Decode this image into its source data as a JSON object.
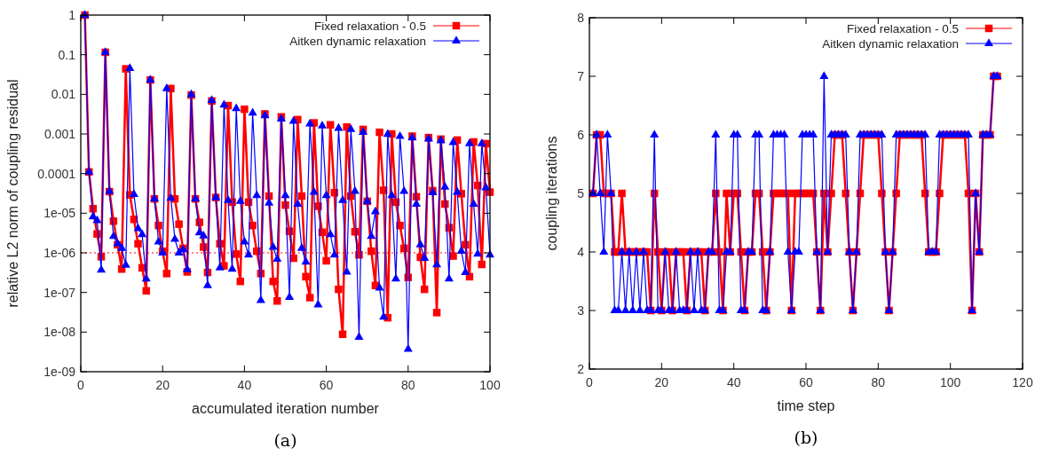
{
  "chart_data": [
    {
      "type": "line",
      "xlabel": "accumulated iteration number",
      "ylabel": "relative L2 norm of coupling residual",
      "log": "y",
      "grid": false,
      "legend": "top right",
      "line_style": "solid",
      "xlim": [
        0,
        100
      ],
      "xticks": [
        0,
        20,
        40,
        60,
        80,
        100
      ],
      "ylim": [
        1e-09,
        1
      ],
      "yticks": [
        {
          "value": 1e-09,
          "label": "1e-09"
        },
        {
          "value": 1e-08,
          "label": "1e-08"
        },
        {
          "value": 1e-07,
          "label": "1e-07"
        },
        {
          "value": 1e-06,
          "label": "1e-06"
        },
        {
          "value": 1e-05,
          "label": "1e-05"
        },
        0.0001,
        0.001,
        0.01,
        0.1,
        1
      ],
      "ref_lines": [
        {
          "axis": "y",
          "value": 1e-06,
          "color": "#ff0000",
          "line_style": "dotted"
        }
      ],
      "annotations": [
        "(a)"
      ],
      "x": [
        1,
        2,
        3,
        4,
        5,
        6,
        7,
        8,
        9,
        10,
        11,
        12,
        13,
        14,
        15,
        16,
        17,
        18,
        19,
        20,
        21,
        22,
        23,
        24,
        25,
        26,
        27,
        28,
        29,
        30,
        31,
        32,
        33,
        34,
        35,
        36,
        37,
        38,
        39,
        40,
        41,
        42,
        43,
        44,
        45,
        46,
        47,
        48,
        49,
        50,
        51,
        52,
        53,
        54,
        55,
        56,
        57,
        58,
        59,
        60,
        61,
        62,
        63,
        64,
        65,
        66,
        67,
        68,
        69,
        70,
        71,
        72,
        73,
        74,
        75,
        76,
        77,
        78,
        79,
        80,
        81,
        82,
        83,
        84,
        85,
        86,
        87,
        88,
        89,
        90,
        91,
        92,
        93,
        94,
        95,
        96,
        97,
        98,
        99,
        100
      ],
      "series": [
        {
          "name": "Fixed relaxation - 0.5",
          "color": "#ff0000",
          "marker": "square",
          "values": [
            1,
            0.00011,
            1.3e-05,
            3e-06,
            8e-07,
            0.115,
            3.5e-05,
            6.3e-06,
            1.6e-06,
            3.9e-07,
            0.044,
            2.9e-05,
            7e-06,
            1.7e-06,
            4.2e-07,
            1.1e-07,
            0.023,
            2.3e-05,
            4.9e-06,
            1.1e-06,
            3e-07,
            0.014,
            2.3e-05,
            5.3e-06,
            1.3e-06,
            3.3e-07,
            0.0096,
            2.3e-05,
            5.9e-06,
            1.4e-06,
            3.2e-07,
            0.0068,
            2.5e-05,
            1.7e-06,
            4.7e-07,
            0.0052,
            1.9e-05,
            9.3e-07,
            1.9e-07,
            0.0042,
            1.9e-05,
            4.9e-06,
            1.1e-06,
            3e-07,
            0.0032,
            2.7e-05,
            1.9e-07,
            6.1e-08,
            0.0027,
            1.6e-05,
            3.5e-06,
            7.3e-07,
            0.0023,
            2.7e-05,
            2.5e-07,
            7.4e-08,
            0.0019,
            1.5e-05,
            3.3e-06,
            6.3e-07,
            0.0017,
            3.3e-05,
            1.2e-07,
            8.8e-09,
            0.0015,
            2.7e-05,
            3.4e-06,
            8.9e-07,
            0.0013,
            2e-05,
            1.1e-06,
            1.5e-07,
            0.0011,
            3.8e-05,
            2.3e-08,
            0.001,
            1.9e-05,
            4.9e-06,
            1.3e-06,
            2.4e-07,
            0.00088,
            2.6e-05,
            7.7e-07,
            1.2e-07,
            0.00081,
            3.7e-05,
            3.1e-08,
            0.00074,
            1.7e-05,
            4.3e-06,
            8.3e-07,
            0.0007,
            3.1e-05,
            1.6e-06,
            2.5e-07,
            0.00063,
            5e-05,
            5.1e-07,
            0.00057,
            3.4e-05
          ]
        },
        {
          "name": "Aitken dynamic relaxation",
          "color": "#0000ff",
          "marker": "triangle",
          "values": [
            1,
            0.00011,
            8.1e-06,
            6.5e-06,
            3.7e-07,
            0.115,
            3.6e-05,
            2.6e-06,
            1.7e-06,
            1.3e-06,
            4.9e-07,
            0.045,
            3e-05,
            4.1e-06,
            2.9e-06,
            2.2e-07,
            0.023,
            2.3e-05,
            1.9e-06,
            1e-06,
            0.014,
            2.4e-05,
            2.2e-06,
            1e-06,
            1.2e-06,
            3.8e-07,
            0.0099,
            2.3e-05,
            3.2e-06,
            2.7e-06,
            1.5e-07,
            0.0071,
            2.5e-05,
            4.2e-07,
            0.0054,
            2.1e-05,
            3.9e-07,
            0.0044,
            2e-05,
            1.9e-06,
            8.9e-07,
            0.0034,
            2.8e-05,
            6.3e-08,
            0.0029,
            1.8e-05,
            1.4e-06,
            6.9e-07,
            0.0024,
            2.8e-05,
            7.6e-08,
            0.0021,
            1.7e-05,
            1.3e-06,
            5.9e-07,
            0.0018,
            3.4e-05,
            4.9e-08,
            0.0016,
            2.8e-05,
            2.9e-06,
            8.9e-07,
            0.0014,
            2.1e-05,
            3.3e-07,
            0.0013,
            3.6e-05,
            7.4e-09,
            0.0011,
            2e-05,
            2.6e-06,
            1.1e-05,
            1.3e-07,
            2.4e-08,
            0.00098,
            2.8e-05,
            2.2e-07,
            0.00087,
            3.6e-05,
            3.7e-09,
            0.0008,
            1.7e-05,
            1.6e-06,
            7.3e-07,
            0.00075,
            3.3e-05,
            5e-07,
            0.00068,
            4.6e-05,
            2.2e-07,
            0.00061,
            3.4e-05,
            1.1e-06,
            3.2e-07,
            0.00057,
            1.7e-05,
            9.3e-07,
            0.00057,
            4.4e-05,
            8.9e-07
          ]
        }
      ]
    },
    {
      "type": "line",
      "xlabel": "time step",
      "ylabel": "coupling iterations",
      "grid": false,
      "legend": "top right",
      "line_style": "solid",
      "xlim": [
        0,
        120
      ],
      "xticks": [
        0,
        20,
        40,
        60,
        80,
        100,
        120
      ],
      "ylim": [
        2,
        8
      ],
      "yticks": [
        2,
        3,
        4,
        5,
        6,
        7,
        8
      ],
      "annotations": [
        "(b)"
      ],
      "x": [
        1,
        2,
        3,
        4,
        5,
        6,
        7,
        8,
        9,
        10,
        11,
        12,
        13,
        14,
        15,
        16,
        17,
        18,
        19,
        20,
        21,
        22,
        23,
        24,
        25,
        26,
        27,
        28,
        29,
        30,
        31,
        32,
        33,
        34,
        35,
        36,
        37,
        38,
        39,
        40,
        41,
        42,
        43,
        44,
        45,
        46,
        47,
        48,
        49,
        50,
        51,
        52,
        53,
        54,
        55,
        56,
        57,
        58,
        59,
        60,
        61,
        62,
        63,
        64,
        65,
        66,
        67,
        68,
        69,
        70,
        71,
        72,
        73,
        74,
        75,
        76,
        77,
        78,
        79,
        80,
        81,
        82,
        83,
        84,
        85,
        86,
        87,
        88,
        89,
        90,
        91,
        92,
        93,
        94,
        95,
        96,
        97,
        98,
        99,
        100,
        101,
        102,
        103,
        104,
        105,
        106,
        107,
        108,
        109,
        110,
        111,
        112,
        113
      ],
      "series": [
        {
          "name": "Fixed relaxation - 0.5",
          "color": "#ff0000",
          "marker": "square",
          "values": [
            5,
            6,
            6,
            5,
            5,
            5,
            4,
            4,
            5,
            4,
            4,
            4,
            4,
            4,
            4,
            4,
            3,
            5,
            4,
            3,
            4,
            4,
            3,
            4,
            4,
            4,
            3,
            4,
            4,
            4,
            4,
            3,
            4,
            4,
            5,
            4,
            3,
            5,
            4,
            5,
            5,
            4,
            3,
            4,
            4,
            5,
            5,
            4,
            3,
            4,
            5,
            5,
            5,
            5,
            5,
            3,
            5,
            5,
            5,
            5,
            5,
            5,
            4,
            3,
            5,
            4,
            5,
            6,
            6,
            6,
            5,
            4,
            3,
            4,
            5,
            6,
            6,
            6,
            6,
            6,
            5,
            4,
            3,
            4,
            5,
            6,
            6,
            6,
            6,
            6,
            6,
            6,
            5,
            4,
            4,
            4,
            5,
            6,
            6,
            6,
            6,
            6,
            6,
            6,
            5,
            3,
            5,
            4,
            6,
            6,
            6,
            7,
            7
          ]
        },
        {
          "name": "Aitken dynamic relaxation",
          "color": "#0000ff",
          "marker": "triangle",
          "values": [
            5,
            6,
            5,
            4,
            6,
            5,
            3,
            3,
            4,
            3,
            4,
            3,
            4,
            3,
            4,
            3,
            3,
            6,
            3,
            3,
            4,
            3,
            3,
            4,
            3,
            3,
            3,
            4,
            3,
            4,
            3,
            3,
            4,
            4,
            6,
            3,
            3,
            4,
            4,
            6,
            6,
            3,
            3,
            4,
            4,
            6,
            6,
            3,
            3,
            4,
            6,
            6,
            6,
            6,
            4,
            3,
            4,
            4,
            6,
            6,
            6,
            6,
            4,
            3,
            7,
            4,
            6,
            6,
            6,
            6,
            6,
            4,
            3,
            4,
            6,
            6,
            6,
            6,
            6,
            6,
            6,
            4,
            3,
            4,
            6,
            6,
            6,
            6,
            6,
            6,
            6,
            6,
            6,
            4,
            4,
            4,
            6,
            6,
            6,
            6,
            6,
            6,
            6,
            6,
            6,
            3,
            5,
            4,
            6,
            6,
            6,
            7,
            7
          ]
        }
      ]
    }
  ]
}
